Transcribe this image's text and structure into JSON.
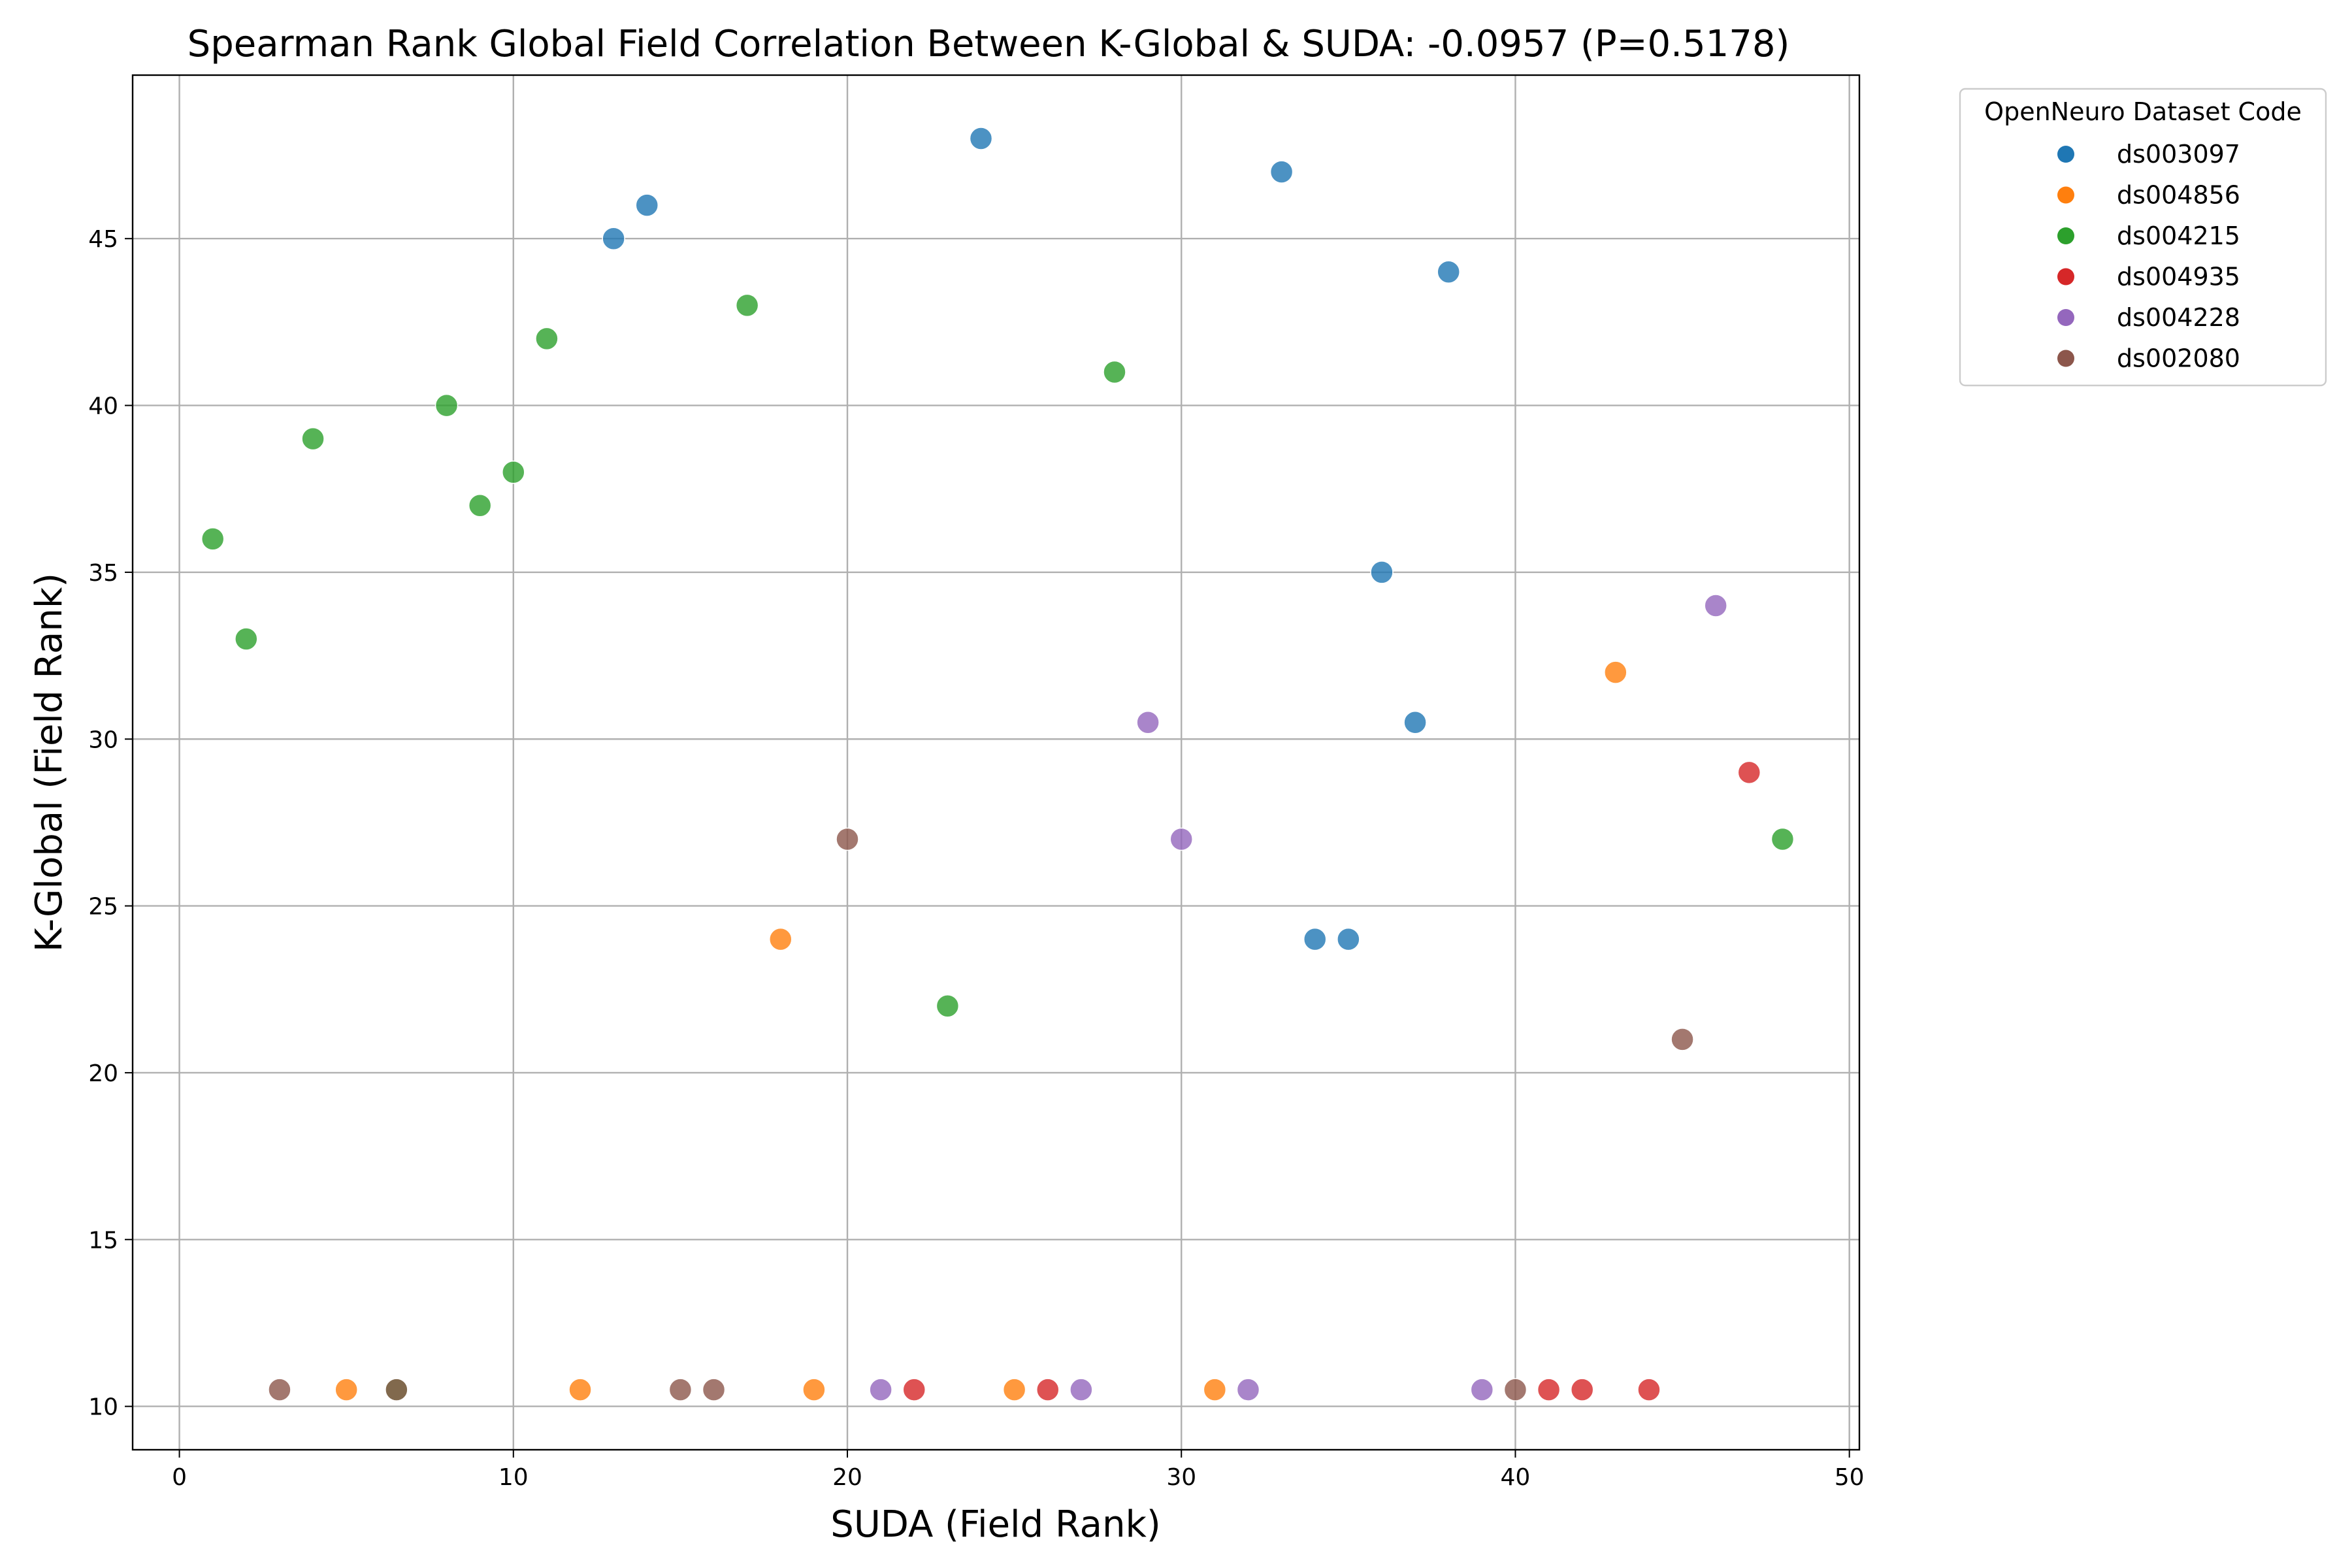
{
  "chart_data": {
    "type": "scatter",
    "title": "Spearman Rank Global Field Correlation Between K-Global & SUDA: -0.0957 (P=0.5178)",
    "xlabel": "SUDA (Field Rank)",
    "ylabel": "K-Global (Field Rank)",
    "xlim": [
      -1.4,
      50.3
    ],
    "ylim": [
      8.7,
      49.9
    ],
    "xticks": [
      0,
      10,
      20,
      30,
      40,
      50
    ],
    "yticks": [
      10,
      15,
      20,
      25,
      30,
      35,
      40,
      45
    ],
    "grid": true,
    "legend": {
      "title": "OpenNeuro Dataset Code",
      "placement": "outside-top-right"
    },
    "series": [
      {
        "name": "ds003097",
        "color": "#1f77b4",
        "points": [
          [
            13,
            45
          ],
          [
            14,
            46
          ],
          [
            24,
            48
          ],
          [
            33,
            47
          ],
          [
            34,
            24
          ],
          [
            35,
            24
          ],
          [
            36,
            35
          ],
          [
            37,
            30.5
          ],
          [
            38,
            44
          ]
        ]
      },
      {
        "name": "ds004856",
        "color": "#ff7f0e",
        "points": [
          [
            5,
            10.5
          ],
          [
            12,
            10.5
          ],
          [
            18,
            24
          ],
          [
            19,
            10.5
          ],
          [
            25,
            10.5
          ],
          [
            31,
            10.5
          ],
          [
            43,
            32
          ]
        ]
      },
      {
        "name": "ds004215",
        "color": "#2ca02c",
        "points": [
          [
            1,
            36
          ],
          [
            2,
            33
          ],
          [
            4,
            39
          ],
          [
            6.5,
            10.5
          ],
          [
            8,
            40
          ],
          [
            9,
            37
          ],
          [
            10,
            38
          ],
          [
            11,
            42
          ],
          [
            17,
            43
          ],
          [
            23,
            22
          ],
          [
            28,
            41
          ],
          [
            48,
            27
          ]
        ]
      },
      {
        "name": "ds004935",
        "color": "#d62728",
        "points": [
          [
            22,
            10.5
          ],
          [
            26,
            10.5
          ],
          [
            41,
            10.5
          ],
          [
            42,
            10.5
          ],
          [
            44,
            10.5
          ],
          [
            47,
            29
          ]
        ]
      },
      {
        "name": "ds004228",
        "color": "#9467bd",
        "points": [
          [
            21,
            10.5
          ],
          [
            27,
            10.5
          ],
          [
            29,
            30.5
          ],
          [
            30,
            27
          ],
          [
            32,
            10.5
          ],
          [
            39,
            10.5
          ],
          [
            46,
            34
          ]
        ]
      },
      {
        "name": "ds002080",
        "color": "#8c564b",
        "points": [
          [
            3,
            10.5
          ],
          [
            6.5,
            10.5
          ],
          [
            15,
            10.5
          ],
          [
            16,
            10.5
          ],
          [
            20,
            27
          ],
          [
            40,
            10.5
          ],
          [
            45,
            21
          ]
        ]
      }
    ]
  }
}
